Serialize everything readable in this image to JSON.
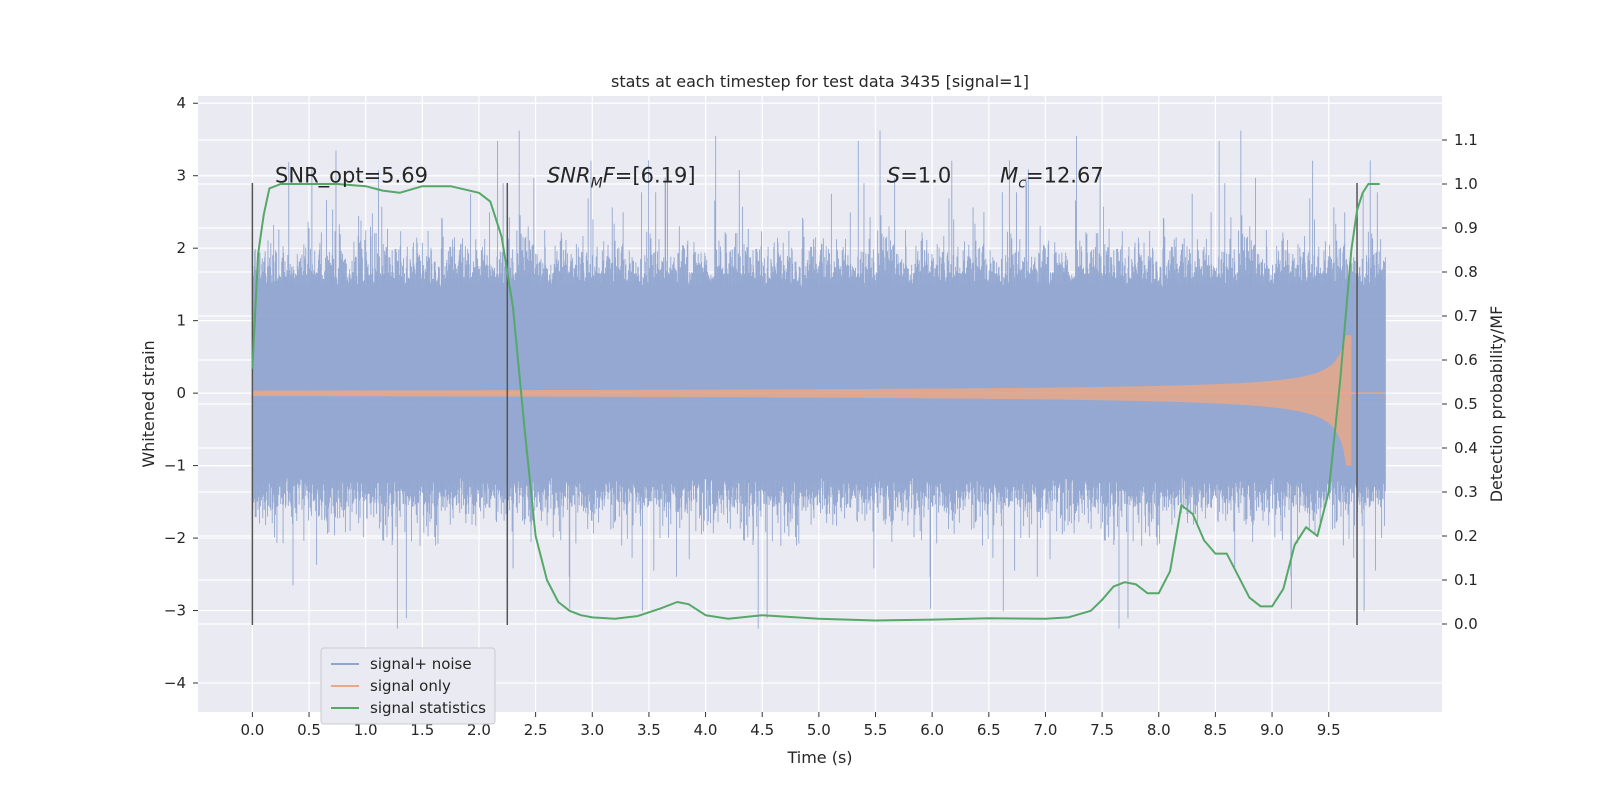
{
  "chart_data": {
    "type": "line",
    "title": "stats at each timestep for test data 3435 [signal=1]",
    "xlabel": "Time (s)",
    "ylabel": "Whitened strain",
    "y2label": "Detection probability/MF",
    "xlim": [
      -0.48,
      10.5
    ],
    "ylim": [
      -4.4,
      4.1
    ],
    "y2lim": [
      -0.2,
      1.2
    ],
    "x_ticks": [
      0.0,
      0.5,
      1.0,
      1.5,
      2.0,
      2.5,
      3.0,
      3.5,
      4.0,
      4.5,
      5.0,
      5.5,
      6.0,
      6.5,
      7.0,
      7.5,
      8.0,
      8.5,
      9.0,
      9.5
    ],
    "x_tick_labels": [
      "0.0",
      "0.5",
      "1.0",
      "1.5",
      "2.0",
      "2.5",
      "3.0",
      "3.5",
      "4.0",
      "4.5",
      "5.0",
      "5.5",
      "6.0",
      "6.5",
      "7.0",
      "7.5",
      "8.0",
      "8.5",
      "9.0",
      "9.5"
    ],
    "y_ticks": [
      4,
      3,
      2,
      1,
      0,
      -1,
      -2,
      -3,
      -4
    ],
    "y_tick_labels": [
      "4",
      "3",
      "2",
      "1",
      "0",
      "−1",
      "−2",
      "−3",
      "−4"
    ],
    "y2_ticks": [
      1.1,
      1.0,
      0.9,
      0.8,
      0.7,
      0.6,
      0.5,
      0.4,
      0.3,
      0.2,
      0.1,
      0.0
    ],
    "y2_tick_labels": [
      "1.1",
      "1.0",
      "0.9",
      "0.8",
      "0.7",
      "0.6",
      "0.5",
      "0.4",
      "0.3",
      "0.2",
      "0.1",
      "0.0"
    ],
    "grid": true,
    "legend": {
      "placement": "lower-left",
      "entries": [
        {
          "label": "signal+ noise",
          "color": "#8fa4cf"
        },
        {
          "label": "signal only",
          "color": "#e8a88a"
        },
        {
          "label": "signal statistics",
          "color": "#55a868"
        }
      ]
    },
    "annotations": [
      {
        "id": "snr-opt",
        "prefix": "SNR_opt=",
        "value": "5.69",
        "x": 0.2,
        "y": 3.0
      },
      {
        "id": "snr-mf",
        "prefix": "SNR",
        "sub": "M",
        "suffix": "F=",
        "value": "[6.19]",
        "x": 2.6,
        "y": 3.0
      },
      {
        "id": "s",
        "prefix": "S",
        "suffix": "=",
        "value": "1.0",
        "x": 5.6,
        "y": 3.0
      },
      {
        "id": "mc",
        "prefix": "M",
        "sub": "c",
        "suffix": "=",
        "value": "12.67",
        "x": 6.6,
        "y": 3.0
      }
    ],
    "vertical_lines": {
      "x": [
        0.0,
        2.25,
        9.75
      ],
      "ymin": -3.2,
      "ymax": 2.9,
      "color": "#555555"
    },
    "noise": {
      "name": "signal+ noise",
      "color": "#8fa4cf",
      "t_range": [
        0.0,
        10.0
      ],
      "typical_extent": [
        -1.4,
        1.7
      ],
      "max_spike": 3.65,
      "min_spike": -3.65
    },
    "signal_only": {
      "name": "signal only",
      "color": "#e8a88a",
      "t_range": [
        0.0,
        10.0
      ],
      "peak_time": 9.7,
      "peak_amplitude": [
        -1.0,
        0.8
      ]
    },
    "statistics": {
      "name": "signal statistics",
      "color": "#55a868",
      "axis": "right",
      "x": [
        0.0,
        0.05,
        0.1,
        0.15,
        0.25,
        0.5,
        0.75,
        1.0,
        1.15,
        1.3,
        1.5,
        1.75,
        2.0,
        2.1,
        2.2,
        2.3,
        2.4,
        2.5,
        2.6,
        2.7,
        2.8,
        2.9,
        3.0,
        3.2,
        3.4,
        3.6,
        3.75,
        3.85,
        4.0,
        4.2,
        4.5,
        5.0,
        5.5,
        6.0,
        6.5,
        7.0,
        7.2,
        7.4,
        7.5,
        7.6,
        7.7,
        7.8,
        7.9,
        8.0,
        8.1,
        8.2,
        8.3,
        8.4,
        8.5,
        8.6,
        8.7,
        8.8,
        8.9,
        9.0,
        9.1,
        9.2,
        9.3,
        9.4,
        9.5,
        9.6,
        9.7,
        9.75,
        9.8,
        9.85,
        9.9,
        9.95
      ],
      "y": [
        0.58,
        0.84,
        0.93,
        0.99,
        1.0,
        1.0,
        1.0,
        0.995,
        0.985,
        0.98,
        0.995,
        0.995,
        0.98,
        0.96,
        0.88,
        0.72,
        0.45,
        0.2,
        0.1,
        0.05,
        0.03,
        0.02,
        0.015,
        0.012,
        0.018,
        0.035,
        0.05,
        0.045,
        0.02,
        0.012,
        0.02,
        0.012,
        0.008,
        0.01,
        0.013,
        0.012,
        0.015,
        0.03,
        0.055,
        0.085,
        0.095,
        0.09,
        0.07,
        0.07,
        0.12,
        0.27,
        0.25,
        0.19,
        0.16,
        0.16,
        0.11,
        0.06,
        0.04,
        0.04,
        0.08,
        0.18,
        0.22,
        0.2,
        0.3,
        0.55,
        0.85,
        0.94,
        0.98,
        1.0,
        1.0,
        1.0
      ]
    }
  }
}
